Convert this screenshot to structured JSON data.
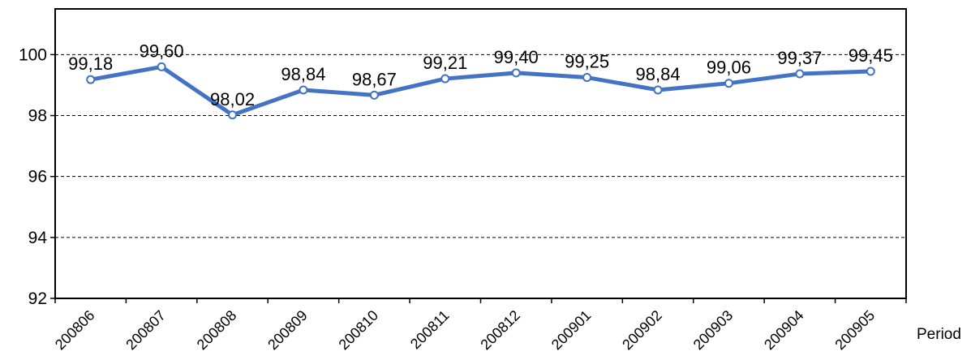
{
  "chart_data": {
    "type": "line",
    "title": "",
    "xlabel": "Period",
    "ylabel": "",
    "categories": [
      "200806",
      "200807",
      "200808",
      "200809",
      "200810",
      "200811",
      "200812",
      "200901",
      "200902",
      "200903",
      "200904",
      "200905"
    ],
    "series": [
      {
        "values": [
          99.18,
          99.6,
          98.02,
          98.84,
          98.67,
          99.21,
          99.4,
          99.25,
          98.84,
          99.06,
          99.37,
          99.45
        ],
        "labels": [
          "99,18",
          "99,60",
          "98,02",
          "98,84",
          "98,67",
          "99,21",
          "99,40",
          "99,25",
          "98,84",
          "99,06",
          "99,37",
          "99,45"
        ],
        "color": "#4472C4"
      }
    ],
    "ylim": [
      92,
      101.5
    ],
    "yticks": [
      "92",
      "94",
      "96",
      "98",
      "100"
    ],
    "ytick_values": [
      92,
      94,
      96,
      98,
      100
    ],
    "grid": true,
    "legend": "none"
  }
}
